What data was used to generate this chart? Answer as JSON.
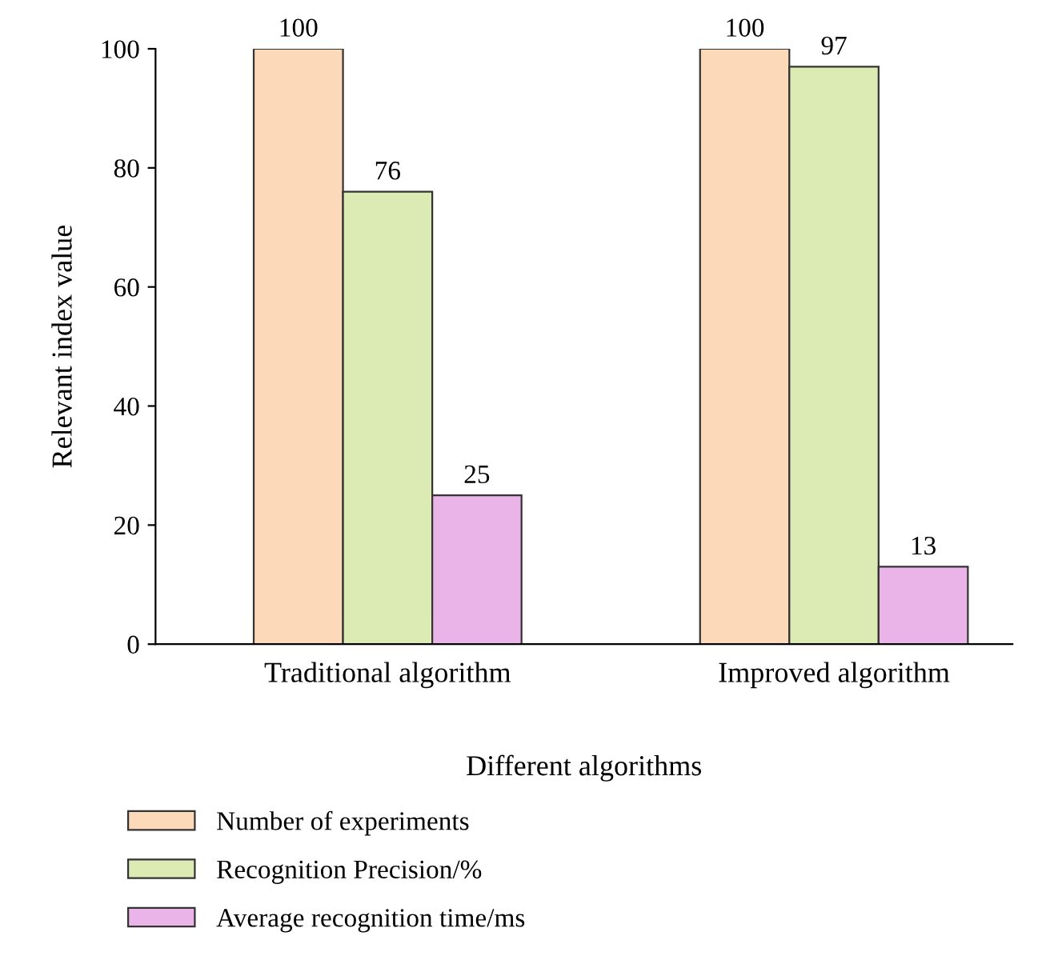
{
  "chart_data": {
    "type": "bar",
    "xlabel": "Different algorithms",
    "ylabel": "Relevant index value",
    "categories": [
      "Traditional algorithm",
      "Improved algorithm"
    ],
    "series": [
      {
        "name": "Number of experiments",
        "color": "#fcd9b8",
        "values": [
          100,
          100
        ]
      },
      {
        "name": "Recognition Precision/%",
        "color": "#dcebb4",
        "values": [
          76,
          97
        ]
      },
      {
        "name": "Average recognition time/ms",
        "color": "#ebb4e8",
        "values": [
          25,
          13
        ]
      }
    ],
    "ylim": [
      0,
      100
    ],
    "yticks": [
      0,
      20,
      40,
      60,
      80,
      100
    ],
    "data_labels": true,
    "legend": "bottom",
    "grid": false
  }
}
